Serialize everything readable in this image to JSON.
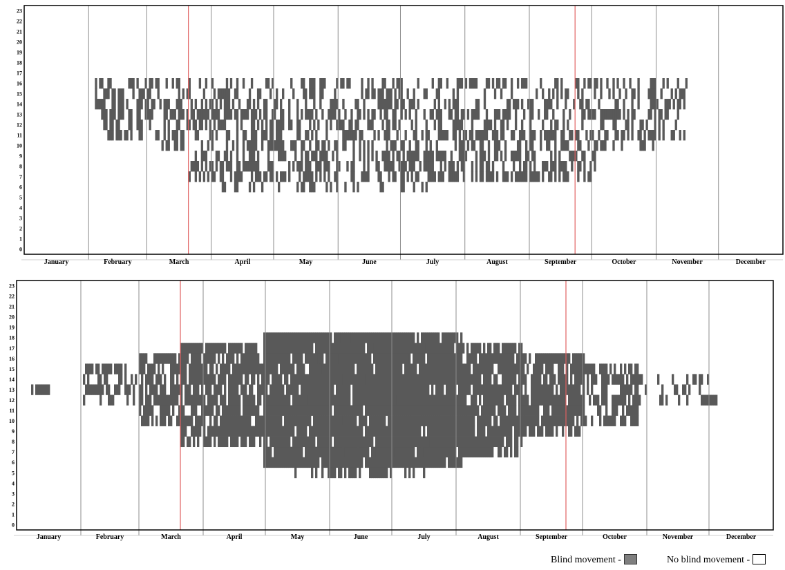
{
  "colors": {
    "movement": "#595959",
    "month_line": "#8c8c8c",
    "marker_line": "#e06060",
    "frame": "#000000"
  },
  "legend": {
    "movement_label": "Blind movement -",
    "no_movement_label": "No blind movement -"
  },
  "chart_data": [
    {
      "type": "heatmap",
      "title": "",
      "xlabel": "",
      "ylabel": "",
      "xlim": [
        1,
        365
      ],
      "ylim": [
        0,
        23
      ],
      "x_unit": "day of year",
      "y_unit": "hour",
      "y_ticks": [
        "0",
        "1",
        "2",
        "3",
        "4",
        "5",
        "6",
        "7",
        "8",
        "9",
        "10",
        "11",
        "12",
        "13",
        "14",
        "15",
        "16",
        "17",
        "18",
        "19",
        "20",
        "21",
        "22",
        "23"
      ],
      "months": [
        "January",
        "February",
        "March",
        "April",
        "May",
        "June",
        "July",
        "August",
        "September",
        "October",
        "November",
        "December"
      ],
      "month_starts": [
        1,
        32,
        60,
        91,
        121,
        152,
        182,
        213,
        244,
        274,
        305,
        335
      ],
      "marker_days": [
        80,
        266
      ],
      "legend_position": "bottom-right",
      "activity": [
        {
          "hours": [
            14,
            16
          ],
          "start": 35,
          "end": 320,
          "density": 0.4
        },
        {
          "hours": [
            11,
            13
          ],
          "start": 38,
          "end": 318,
          "density": 0.48
        },
        {
          "hours": [
            10,
            10
          ],
          "start": 65,
          "end": 305,
          "density": 0.45
        },
        {
          "hours": [
            7,
            9
          ],
          "start": 80,
          "end": 275,
          "density": 0.55
        },
        {
          "hours": [
            6,
            6
          ],
          "start": 95,
          "end": 200,
          "density": 0.25
        }
      ]
    },
    {
      "type": "heatmap",
      "title": "",
      "xlabel": "",
      "ylabel": "",
      "xlim": [
        1,
        365
      ],
      "ylim": [
        0,
        23
      ],
      "x_unit": "day of year",
      "y_unit": "hour",
      "y_ticks": [
        "0",
        "1",
        "2",
        "3",
        "4",
        "5",
        "6",
        "7",
        "8",
        "9",
        "10",
        "11",
        "12",
        "13",
        "14",
        "15",
        "16",
        "17",
        "18",
        "19",
        "20",
        "21",
        "22",
        "23"
      ],
      "months": [
        "January",
        "February",
        "March",
        "April",
        "May",
        "June",
        "July",
        "August",
        "September",
        "October",
        "November",
        "December"
      ],
      "month_starts": [
        1,
        32,
        60,
        91,
        121,
        152,
        182,
        213,
        244,
        274,
        305,
        335
      ],
      "marker_days": [
        80,
        266
      ],
      "legend_position": "bottom-right",
      "activity": [
        {
          "hours": [
            13,
            13
          ],
          "start": 8,
          "end": 18,
          "density": 0.55
        },
        {
          "hours": [
            12,
            15
          ],
          "start": 33,
          "end": 58,
          "density": 0.45
        },
        {
          "hours": [
            10,
            16
          ],
          "start": 60,
          "end": 80,
          "density": 0.7
        },
        {
          "hours": [
            8,
            17
          ],
          "start": 80,
          "end": 120,
          "density": 0.82
        },
        {
          "hours": [
            6,
            18
          ],
          "start": 120,
          "end": 215,
          "density": 0.92
        },
        {
          "hours": [
            5,
            18
          ],
          "start": 135,
          "end": 200,
          "density": 0.4
        },
        {
          "hours": [
            7,
            17
          ],
          "start": 215,
          "end": 244,
          "density": 0.85
        },
        {
          "hours": [
            9,
            16
          ],
          "start": 244,
          "end": 274,
          "density": 0.8
        },
        {
          "hours": [
            10,
            15
          ],
          "start": 274,
          "end": 300,
          "density": 0.6
        },
        {
          "hours": [
            12,
            14
          ],
          "start": 300,
          "end": 335,
          "density": 0.2
        },
        {
          "hours": [
            12,
            12
          ],
          "start": 335,
          "end": 340,
          "density": 0.5
        }
      ]
    }
  ]
}
